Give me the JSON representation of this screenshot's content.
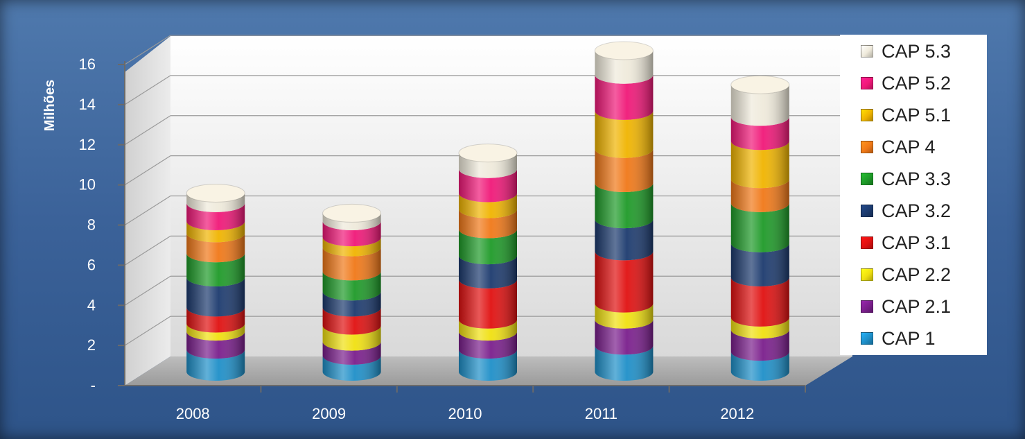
{
  "chart_data": {
    "type": "bar",
    "stacked": true,
    "style": "3d-cylinder",
    "title": "",
    "xlabel": "",
    "ylabel": "Milhões",
    "ylim": [
      0,
      16
    ],
    "yticks": [
      {
        "value": 0,
        "label": "-"
      },
      {
        "value": 2,
        "label": "2"
      },
      {
        "value": 4,
        "label": "4"
      },
      {
        "value": 6,
        "label": "6"
      },
      {
        "value": 8,
        "label": "8"
      },
      {
        "value": 10,
        "label": "10"
      },
      {
        "value": 12,
        "label": "12"
      },
      {
        "value": 14,
        "label": "14"
      },
      {
        "value": 16,
        "label": "16"
      }
    ],
    "grid": true,
    "legend_position": "right",
    "categories": [
      "2008",
      "2009",
      "2010",
      "2011",
      "2012"
    ],
    "series": [
      {
        "name": "CAP 1",
        "color": "#1e8fc8",
        "values": [
          1.1,
          0.8,
          1.1,
          1.3,
          1.0
        ]
      },
      {
        "name": "CAP 2.1",
        "color": "#7a1e8c",
        "values": [
          0.9,
          0.7,
          0.9,
          1.3,
          1.1
        ]
      },
      {
        "name": "CAP 2.2",
        "color": "#f0e010",
        "values": [
          0.4,
          0.8,
          0.6,
          0.8,
          0.6
        ]
      },
      {
        "name": "CAP 3.1",
        "color": "#e01010",
        "values": [
          0.8,
          0.9,
          2.0,
          2.6,
          2.0
        ]
      },
      {
        "name": "CAP 3.2",
        "color": "#1c3a6e",
        "values": [
          1.5,
          0.8,
          1.2,
          1.6,
          1.7
        ]
      },
      {
        "name": "CAP 3.3",
        "color": "#1e9a28",
        "values": [
          1.2,
          1.0,
          1.3,
          1.8,
          2.0
        ]
      },
      {
        "name": "CAP 4",
        "color": "#f07818",
        "values": [
          1.0,
          1.2,
          1.0,
          1.7,
          1.2
        ]
      },
      {
        "name": "CAP 5.1",
        "color": "#f0b400",
        "values": [
          0.6,
          0.5,
          0.8,
          1.9,
          1.9
        ]
      },
      {
        "name": "CAP 5.2",
        "color": "#f01878",
        "values": [
          0.9,
          0.8,
          1.2,
          1.8,
          1.2
        ]
      },
      {
        "name": "CAP 5.3",
        "color": "#efeadb",
        "values": [
          0.5,
          0.4,
          0.8,
          1.2,
          1.6
        ]
      }
    ]
  }
}
